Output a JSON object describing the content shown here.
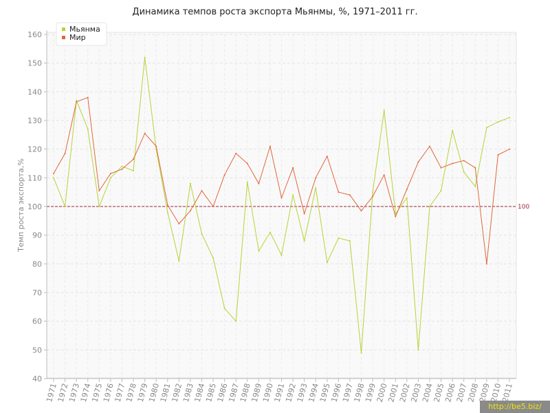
{
  "chart_data": {
    "type": "line",
    "title": "Динамика темпов роста экспорта Мьянмы, %, 1971–2011 гг.",
    "xlabel": "",
    "ylabel": "Темп роста экспорта,%",
    "ylim": [
      40,
      160
    ],
    "yticks": [
      40,
      50,
      60,
      70,
      80,
      90,
      100,
      110,
      120,
      130,
      140,
      150,
      160
    ],
    "grid": true,
    "legend_position": "top-left",
    "x": [
      "1971",
      "1972",
      "1973",
      "1974",
      "1975",
      "1976",
      "1977",
      "1978",
      "1979",
      "1980",
      "1981",
      "1982",
      "1983",
      "1984",
      "1985",
      "1986",
      "1987",
      "1988",
      "1989",
      "1990",
      "1991",
      "1992",
      "1993",
      "1994",
      "1995",
      "1996",
      "1997",
      "1998",
      "1999",
      "2000",
      "2001",
      "2002",
      "2003",
      "2004",
      "2005",
      "2006",
      "2007",
      "2008",
      "2009",
      "2010",
      "2011"
    ],
    "series": [
      {
        "name": "Мьянма",
        "color": "#b5d334",
        "values": [
          110,
          100,
          137,
          127,
          100,
          110,
          114,
          112.5,
          152,
          120,
          98,
          81,
          108,
          90.5,
          82,
          64.5,
          60,
          108.5,
          84.5,
          91,
          83,
          104,
          88,
          106.5,
          80.5,
          89,
          88,
          49,
          105,
          133.5,
          97.5,
          103,
          50,
          100,
          105.5,
          126.5,
          112,
          107,
          127.5,
          129.5,
          131
        ]
      },
      {
        "name": "Мир",
        "color": "#e0663a",
        "values": [
          111.5,
          118.5,
          136.5,
          138,
          105.5,
          111.5,
          113,
          116.5,
          125.5,
          121,
          100.5,
          94,
          98.5,
          105.5,
          100,
          111,
          118.5,
          115,
          108,
          121,
          103,
          113.5,
          97.5,
          110,
          117.5,
          105,
          104,
          98.5,
          103.5,
          111,
          96.5,
          106,
          115.5,
          121,
          113.5,
          115,
          116,
          113.5,
          80,
          118,
          120
        ]
      }
    ],
    "reference_line": {
      "value": 100,
      "label": "100",
      "color": "#9b2335"
    }
  },
  "watermark": "http://be5.biz/"
}
